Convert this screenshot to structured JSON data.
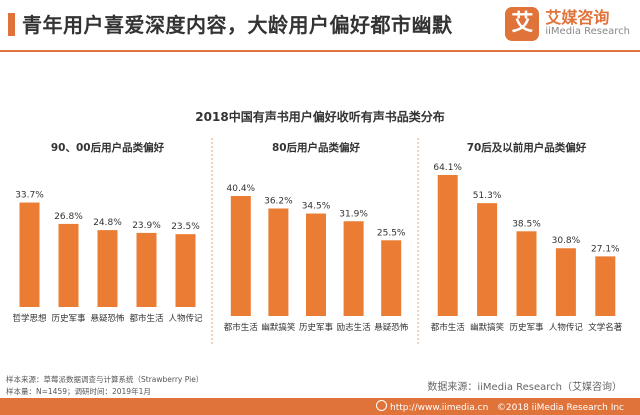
{
  "header": {
    "title": "青年用户喜爱深度内容，大龄用户偏好都市幽默",
    "logo_mark": "艾",
    "logo_cn": "艾媒咨询",
    "logo_en": "iiMedia Research"
  },
  "chart_title": "2018中国有声书用户偏好收听有声书品类分布",
  "colors": {
    "accent": "#e0733a",
    "bar": "#ea7d33",
    "divider": "#e8a070"
  },
  "chart_data": [
    {
      "type": "bar",
      "title": "90、00后用户品类偏好",
      "categories": [
        "哲学思想",
        "历史军事",
        "悬疑恐怖",
        "都市生活",
        "人物传记"
      ],
      "values": [
        33.7,
        26.8,
        24.8,
        23.9,
        23.5
      ],
      "labels": [
        "33.7%",
        "26.8%",
        "24.8%",
        "23.9%",
        "23.5%"
      ]
    },
    {
      "type": "bar",
      "title": "80后用户品类偏好",
      "categories": [
        "都市生活",
        "幽默搞笑",
        "历史军事",
        "励志生活",
        "悬疑恐怖"
      ],
      "values": [
        40.4,
        36.2,
        34.5,
        31.9,
        25.5
      ],
      "labels": [
        "40.4%",
        "36.2%",
        "34.5%",
        "31.9%",
        "25.5%"
      ]
    },
    {
      "type": "bar",
      "title": "70后及以前用户品类偏好",
      "categories": [
        "都市生活",
        "幽默搞笑",
        "历史军事",
        "人物传记",
        "文学名著"
      ],
      "values": [
        64.1,
        51.3,
        38.5,
        30.8,
        27.1
      ],
      "labels": [
        "64.1%",
        "51.3%",
        "38.5%",
        "30.8%",
        "27.1%"
      ]
    }
  ],
  "footer": {
    "sample_source": "样本来源：草莓派数据调查与计算系统（Strawberry Pie）",
    "sample_info": "样本量：N=1459；调研时间：2019年1月",
    "data_source": "数据来源：iiMedia Research（艾媒咨询）",
    "website": "http://www.iimedia.cn",
    "copyright": "©2018  iiMedia Research Inc"
  }
}
